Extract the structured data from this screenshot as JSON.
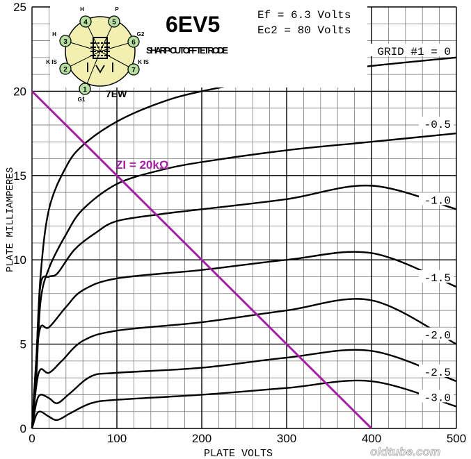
{
  "chart_data": {
    "type": "line",
    "title": "6EV5",
    "subtitle": "SHARP-CUTOFF TETRODE",
    "base_code": "7EW",
    "conditions": [
      "Ef = 6.3 Volts",
      "Ec2 = 80 Volts"
    ],
    "xlabel": "PLATE VOLTS",
    "ylabel": "PLATE MILLIAMPERES",
    "xlim": [
      0,
      500
    ],
    "ylim": [
      0,
      25
    ],
    "x_ticks": [
      0,
      100,
      200,
      300,
      400,
      500
    ],
    "y_ticks": [
      0,
      5,
      10,
      15,
      20,
      25
    ],
    "grid": true,
    "series": [
      {
        "name": "GRID #1 = 0",
        "points": [
          [
            0,
            0
          ],
          [
            5,
            4
          ],
          [
            10,
            9
          ],
          [
            20,
            13
          ],
          [
            40,
            15.5
          ],
          [
            60,
            16.8
          ],
          [
            100,
            18.2
          ],
          [
            150,
            19.3
          ],
          [
            200,
            20
          ],
          [
            300,
            20.9
          ],
          [
            400,
            21.5
          ],
          [
            500,
            22
          ]
        ]
      },
      {
        "name": "-0.5",
        "points": [
          [
            0,
            0
          ],
          [
            5,
            3
          ],
          [
            10,
            7.5
          ],
          [
            20,
            9.5
          ],
          [
            40,
            11.5
          ],
          [
            60,
            13
          ],
          [
            100,
            14.5
          ],
          [
            150,
            15.3
          ],
          [
            200,
            15.8
          ],
          [
            300,
            16.5
          ],
          [
            400,
            17
          ],
          [
            500,
            17.5
          ]
        ]
      },
      {
        "name": "-1.0",
        "points": [
          [
            0,
            0
          ],
          [
            5,
            4
          ],
          [
            10,
            8.5
          ],
          [
            20,
            9
          ],
          [
            30,
            9.2
          ],
          [
            50,
            10.6
          ],
          [
            75,
            11.6
          ],
          [
            100,
            12.3
          ],
          [
            150,
            12.7
          ],
          [
            200,
            13
          ],
          [
            300,
            13.6
          ],
          [
            400,
            14.4
          ],
          [
            500,
            13
          ]
        ]
      },
      {
        "name": "-1.5",
        "points": [
          [
            0,
            0
          ],
          [
            5,
            4
          ],
          [
            10,
            6
          ],
          [
            20,
            6
          ],
          [
            40,
            7.2
          ],
          [
            60,
            8.2
          ],
          [
            100,
            8.9
          ],
          [
            200,
            9.4
          ],
          [
            300,
            10
          ],
          [
            400,
            10.4
          ],
          [
            500,
            8.4
          ]
        ]
      },
      {
        "name": "-2.0",
        "points": [
          [
            0,
            0
          ],
          [
            5,
            2.5
          ],
          [
            10,
            3.5
          ],
          [
            20,
            3.3
          ],
          [
            35,
            4
          ],
          [
            60,
            5.2
          ],
          [
            100,
            5.8
          ],
          [
            200,
            6.3
          ],
          [
            300,
            7
          ],
          [
            400,
            7.6
          ],
          [
            500,
            5
          ]
        ]
      },
      {
        "name": "-2.5",
        "points": [
          [
            0,
            0
          ],
          [
            5,
            1.5
          ],
          [
            10,
            2
          ],
          [
            20,
            1.8
          ],
          [
            30,
            1.5
          ],
          [
            45,
            2.1
          ],
          [
            70,
            3.1
          ],
          [
            100,
            3.3
          ],
          [
            200,
            3.6
          ],
          [
            300,
            4.2
          ],
          [
            400,
            4.6
          ],
          [
            500,
            2.8
          ]
        ]
      },
      {
        "name": "-3.0",
        "points": [
          [
            0,
            0
          ],
          [
            5,
            0.8
          ],
          [
            10,
            1
          ],
          [
            20,
            0.7
          ],
          [
            30,
            0.5
          ],
          [
            45,
            0.9
          ],
          [
            70,
            1.5
          ],
          [
            100,
            1.7
          ],
          [
            200,
            2
          ],
          [
            300,
            2.4
          ],
          [
            400,
            2.8
          ],
          [
            500,
            1.3
          ]
        ]
      }
    ],
    "load_line": {
      "label": "ZI = 20kΩ",
      "points": [
        [
          0,
          20
        ],
        [
          400,
          0
        ]
      ],
      "color": "#a51fa5"
    },
    "base_diagram_pins": [
      {
        "num": "1",
        "label": "G1"
      },
      {
        "num": "2",
        "label": "K IS"
      },
      {
        "num": "3",
        "label": "H"
      },
      {
        "num": "4",
        "label": "H"
      },
      {
        "num": "5",
        "label": "P"
      },
      {
        "num": "6",
        "label": "G2"
      },
      {
        "num": "7",
        "label": "K IS"
      }
    ],
    "base_diagram_colors": {
      "envelope": "#f1f0b0",
      "pin": "#b8e0a0"
    }
  },
  "watermark": "oldtube.com"
}
